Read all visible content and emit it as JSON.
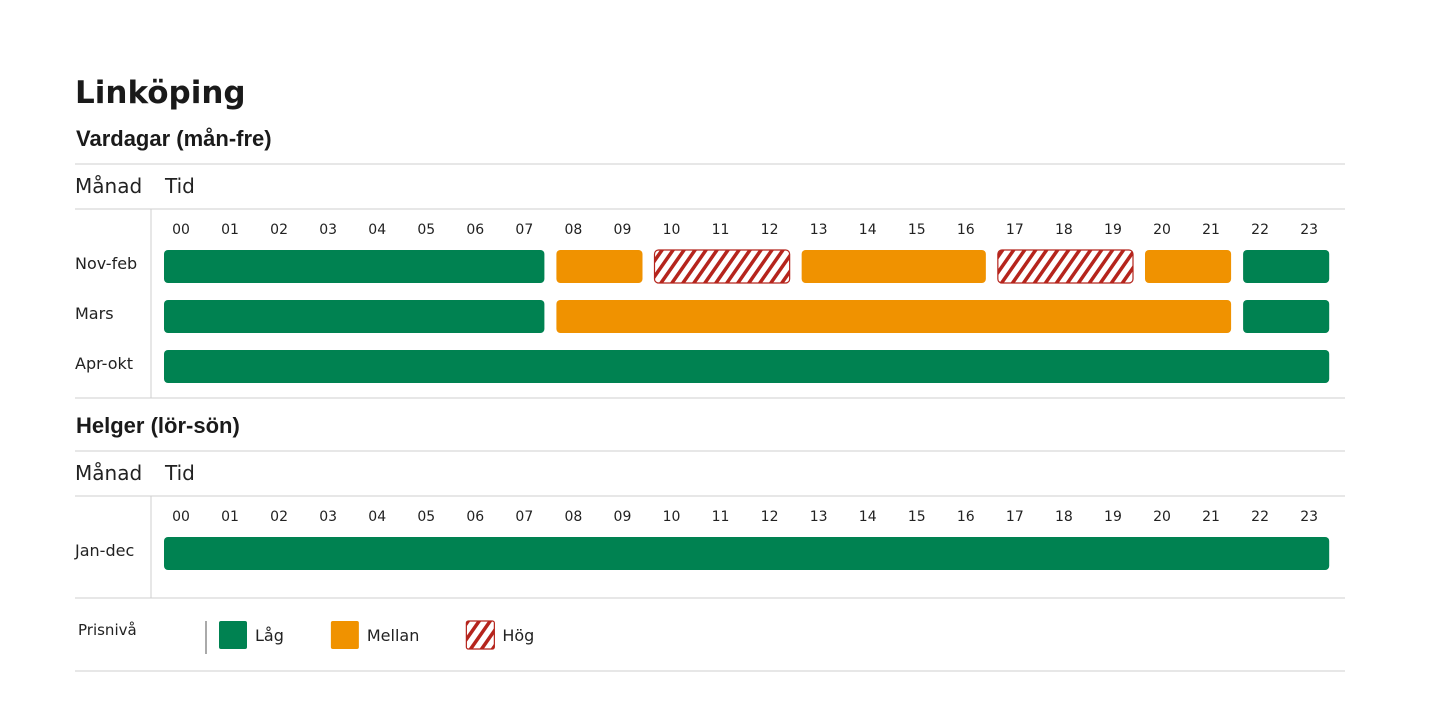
{
  "title": "Linköping",
  "sections": [
    {
      "heading": "Vardagar (mån-fre)",
      "month_header": "Månad",
      "time_header": "Tid",
      "hours": [
        "00",
        "01",
        "02",
        "03",
        "04",
        "05",
        "06",
        "07",
        "08",
        "09",
        "10",
        "11",
        "12",
        "13",
        "14",
        "15",
        "16",
        "17",
        "18",
        "19",
        "20",
        "21",
        "22",
        "23"
      ],
      "rows": [
        {
          "label": "Nov-feb",
          "segments": [
            {
              "from": "00",
              "to": "07",
              "level": "Låg"
            },
            {
              "from": "08",
              "to": "09",
              "level": "Mellan"
            },
            {
              "from": "10",
              "to": "12",
              "level": "Hög"
            },
            {
              "from": "13",
              "to": "16",
              "level": "Mellan"
            },
            {
              "from": "17",
              "to": "19",
              "level": "Hög"
            },
            {
              "from": "20",
              "to": "21",
              "level": "Mellan"
            },
            {
              "from": "22",
              "to": "23",
              "level": "Låg"
            }
          ]
        },
        {
          "label": "Mars",
          "segments": [
            {
              "from": "00",
              "to": "07",
              "level": "Låg"
            },
            {
              "from": "08",
              "to": "21",
              "level": "Mellan"
            },
            {
              "from": "22",
              "to": "23",
              "level": "Låg"
            }
          ]
        },
        {
          "label": "Apr-okt",
          "segments": [
            {
              "from": "00",
              "to": "23",
              "level": "Låg"
            }
          ]
        }
      ]
    },
    {
      "heading": "Helger (lör-sön)",
      "month_header": "Månad",
      "time_header": "Tid",
      "hours": [
        "00",
        "01",
        "02",
        "03",
        "04",
        "05",
        "06",
        "07",
        "08",
        "09",
        "10",
        "11",
        "12",
        "13",
        "14",
        "15",
        "16",
        "17",
        "18",
        "19",
        "20",
        "21",
        "22",
        "23"
      ],
      "rows": [
        {
          "label": "Jan-dec",
          "segments": [
            {
              "from": "00",
              "to": "23",
              "level": "Låg"
            }
          ]
        }
      ]
    }
  ],
  "legend": {
    "title": "Prisnivå",
    "items": [
      {
        "label": "Låg",
        "color": "#008251"
      },
      {
        "label": "Mellan",
        "color": "#f09200"
      },
      {
        "label": "Hög",
        "color": "#b5241c",
        "pattern": "hatch"
      }
    ]
  }
}
